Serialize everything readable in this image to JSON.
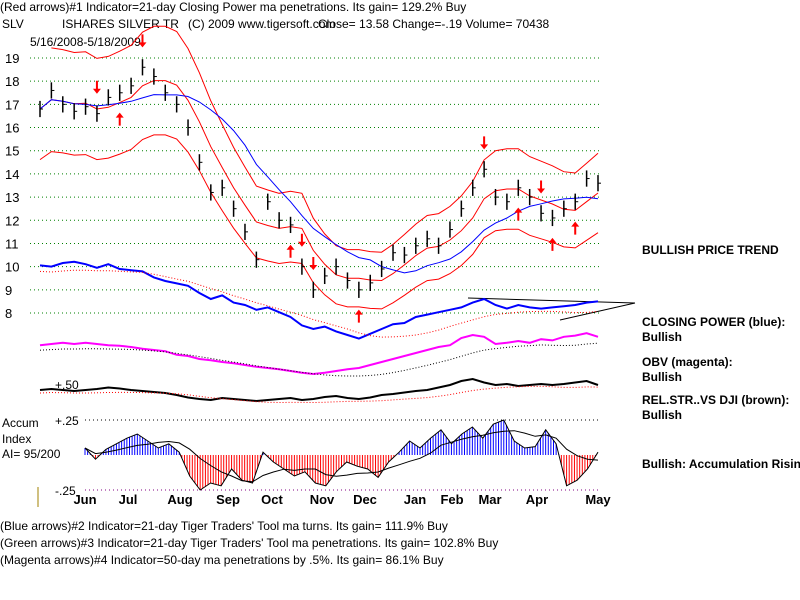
{
  "header": {
    "line1": "(Red arrows)#1 Indicator=21-day Closing Power ma penetrations. Its gain= 129.2% Buy",
    "symbol": "SLV",
    "name": "ISHARES SILVER TR",
    "copyright": "(C) 2009 www.tigersoft.com",
    "quote": "Close=  13.58  Change=-.19 Volume= 70438",
    "date_range": "5/16/2008-5/18/2009"
  },
  "side_labels": {
    "price_trend": "BULLISH PRICE TREND",
    "cp_title": "CLOSING POWER (blue):",
    "cp_value": "Bullish",
    "obv_title": "OBV (magenta):",
    "obv_value": "Bullish",
    "rs_title": "REL.STR..VS DJI (brown):",
    "rs_value": "Bullish",
    "accum_status": "Bullish: Accumulation Rising"
  },
  "accum_labels": {
    "title1": "Accum",
    "title2": "Index",
    "ai": "AI= 95/200",
    "plus": "+.25",
    "minus": "-.25"
  },
  "rs_label": "+.50",
  "footer": [
    "(Blue arrows)#2 Indicator=21-day Tiger Traders' Tool ma turns. Its gain= 111.9% Buy",
    "(Green arrows)#3 Indicator=21-day Tiger Traders' Tool ma penetrations. Its gain= 102.8% Buy",
    "(Magenta arrows)#4 Indicator=50-day ma penetrations by .5%. Its gain= 86.1% Buy"
  ],
  "chart_data": {
    "type": "line",
    "title": "SLV ISHARES SILVER TR",
    "months": [
      "Jun",
      "Jul",
      "Aug",
      "Sep",
      "Oct",
      "Nov",
      "Dec",
      "Jan",
      "Feb",
      "Mar",
      "Apr",
      "May"
    ],
    "y_ticks": [
      19,
      18,
      17,
      16,
      15,
      14,
      13,
      12,
      11,
      10,
      9,
      8
    ],
    "ylim": [
      8,
      19
    ],
    "price_close": [
      16.8,
      17.6,
      17.0,
      16.7,
      16.9,
      16.6,
      17.3,
      17.5,
      17.8,
      18.6,
      18.2,
      17.5,
      17.0,
      16.0,
      14.5,
      13.2,
      13.4,
      12.5,
      11.5,
      10.3,
      12.8,
      12.0,
      11.8,
      10.0,
      9.0,
      9.6,
      10.0,
      9.4,
      9.0,
      9.3,
      9.9,
      10.6,
      10.5,
      10.9,
      11.2,
      10.9,
      11.6,
      12.5,
      13.4,
      14.2,
      13.0,
      12.8,
      13.4,
      13.0,
      12.3,
      12.1,
      12.5,
      12.8,
      13.8,
      13.6
    ],
    "closing_power": [
      83,
      82,
      85,
      86,
      84,
      81,
      84,
      80,
      79,
      78,
      73,
      70,
      68,
      66,
      60,
      55,
      58,
      52,
      50,
      46,
      48,
      44,
      40,
      33,
      30,
      32,
      28,
      25,
      22,
      26,
      30,
      34,
      35,
      40,
      42,
      44,
      46,
      48,
      52,
      55,
      50,
      47,
      50,
      48,
      47,
      48,
      49,
      50,
      52,
      53
    ],
    "obv": [
      58,
      60,
      62,
      60,
      62,
      60,
      58,
      57,
      55,
      52,
      50,
      48,
      42,
      40,
      35,
      33,
      30,
      28,
      25,
      22,
      20,
      18,
      15,
      12,
      10,
      12,
      15,
      18,
      20,
      25,
      30,
      35,
      40,
      45,
      50,
      55,
      58,
      70,
      75,
      72,
      60,
      62,
      65,
      62,
      68,
      66,
      72,
      74,
      78,
      72
    ],
    "rel_strength": [
      40,
      42,
      40,
      38,
      40,
      42,
      45,
      43,
      40,
      38,
      36,
      34,
      30,
      25,
      22,
      20,
      24,
      22,
      20,
      18,
      20,
      22,
      24,
      20,
      22,
      26,
      28,
      24,
      22,
      25,
      30,
      32,
      35,
      38,
      40,
      45,
      50,
      58,
      62,
      55,
      50,
      52,
      48,
      50,
      52,
      50,
      52,
      55,
      58,
      50
    ],
    "accum_index": [
      0.05,
      -0.03,
      0.04,
      0.08,
      0.12,
      0.15,
      0.1,
      0.05,
      0.08,
      0.02,
      -0.15,
      -0.25,
      -0.2,
      -0.22,
      -0.1,
      -0.18,
      -0.2,
      0.02,
      -0.05,
      -0.1,
      -0.15,
      -0.12,
      -0.2,
      -0.22,
      -0.12,
      -0.05,
      -0.08,
      -0.1,
      -0.16,
      -0.05,
      0.02,
      0.1,
      0.05,
      0.12,
      0.18,
      0.08,
      0.15,
      0.2,
      0.12,
      0.22,
      0.25,
      0.1,
      0.05,
      0.06,
      0.18,
      0.08,
      -0.22,
      -0.18,
      -0.1,
      0.02
    ],
    "accum_ylim": [
      -0.25,
      0.25
    ],
    "red_arrows": [
      {
        "i": 5,
        "dir": "down"
      },
      {
        "i": 7,
        "dir": "up"
      },
      {
        "i": 9,
        "dir": "down"
      },
      {
        "i": 23,
        "dir": "down"
      },
      {
        "i": 24,
        "dir": "down"
      },
      {
        "i": 22,
        "dir": "up"
      },
      {
        "i": 28,
        "dir": "up"
      },
      {
        "i": 39,
        "dir": "down"
      },
      {
        "i": 42,
        "dir": "up"
      },
      {
        "i": 44,
        "dir": "down"
      },
      {
        "i": 45,
        "dir": "up"
      },
      {
        "i": 47,
        "dir": "up"
      }
    ],
    "colors": {
      "price": "#000000",
      "ma21": "#ff0000",
      "ma50": "#0000ff",
      "closing_power": "#0000ff",
      "obv": "#ff00ff",
      "rel_strength": "#000000",
      "accum_pos": "#0000ff",
      "accum_neg": "#ff0000",
      "grid": "#008000"
    }
  }
}
